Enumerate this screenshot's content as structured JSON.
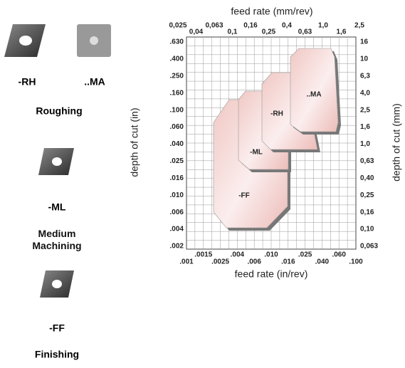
{
  "inserts": [
    {
      "label": "-RH"
    },
    {
      "label": "..MA"
    }
  ],
  "groups": [
    {
      "label": "Roughing"
    },
    {
      "label": "-ML"
    },
    {
      "label": "Medium Machining"
    },
    {
      "label": "-FF"
    },
    {
      "label": "Finishing"
    }
  ],
  "chart": {
    "top_axis_title": "feed rate (mm/rev)",
    "bottom_axis_title": "feed rate (in/rev)",
    "left_axis_title": "depth of cut (in)",
    "right_axis_title": "depth of cut (mm)",
    "top_ticks": [
      "0,025",
      "0,04",
      "0,063",
      "0,1",
      "0,16",
      "0,25",
      "0,4",
      "0,63",
      "1,0",
      "1,6",
      "2,5"
    ],
    "bottom_ticks": [
      ".001",
      ".0015",
      ".0025",
      ".004",
      ".006",
      ".010",
      ".016",
      ".025",
      ".040",
      ".060",
      ".100"
    ],
    "left_ticks": [
      ".630",
      ".400",
      ".250",
      ".160",
      ".100",
      ".060",
      ".040",
      ".025",
      ".016",
      ".010",
      ".006",
      ".004",
      ".002"
    ],
    "right_ticks": [
      "16",
      "10",
      "6,3",
      "4,0",
      "2,5",
      "1,6",
      "1,0",
      "0,63",
      "0,40",
      "0,25",
      "0,16",
      "0,10",
      "0,063"
    ],
    "regions": [
      "-FF",
      "-ML",
      "-RH",
      "..MA"
    ]
  }
}
